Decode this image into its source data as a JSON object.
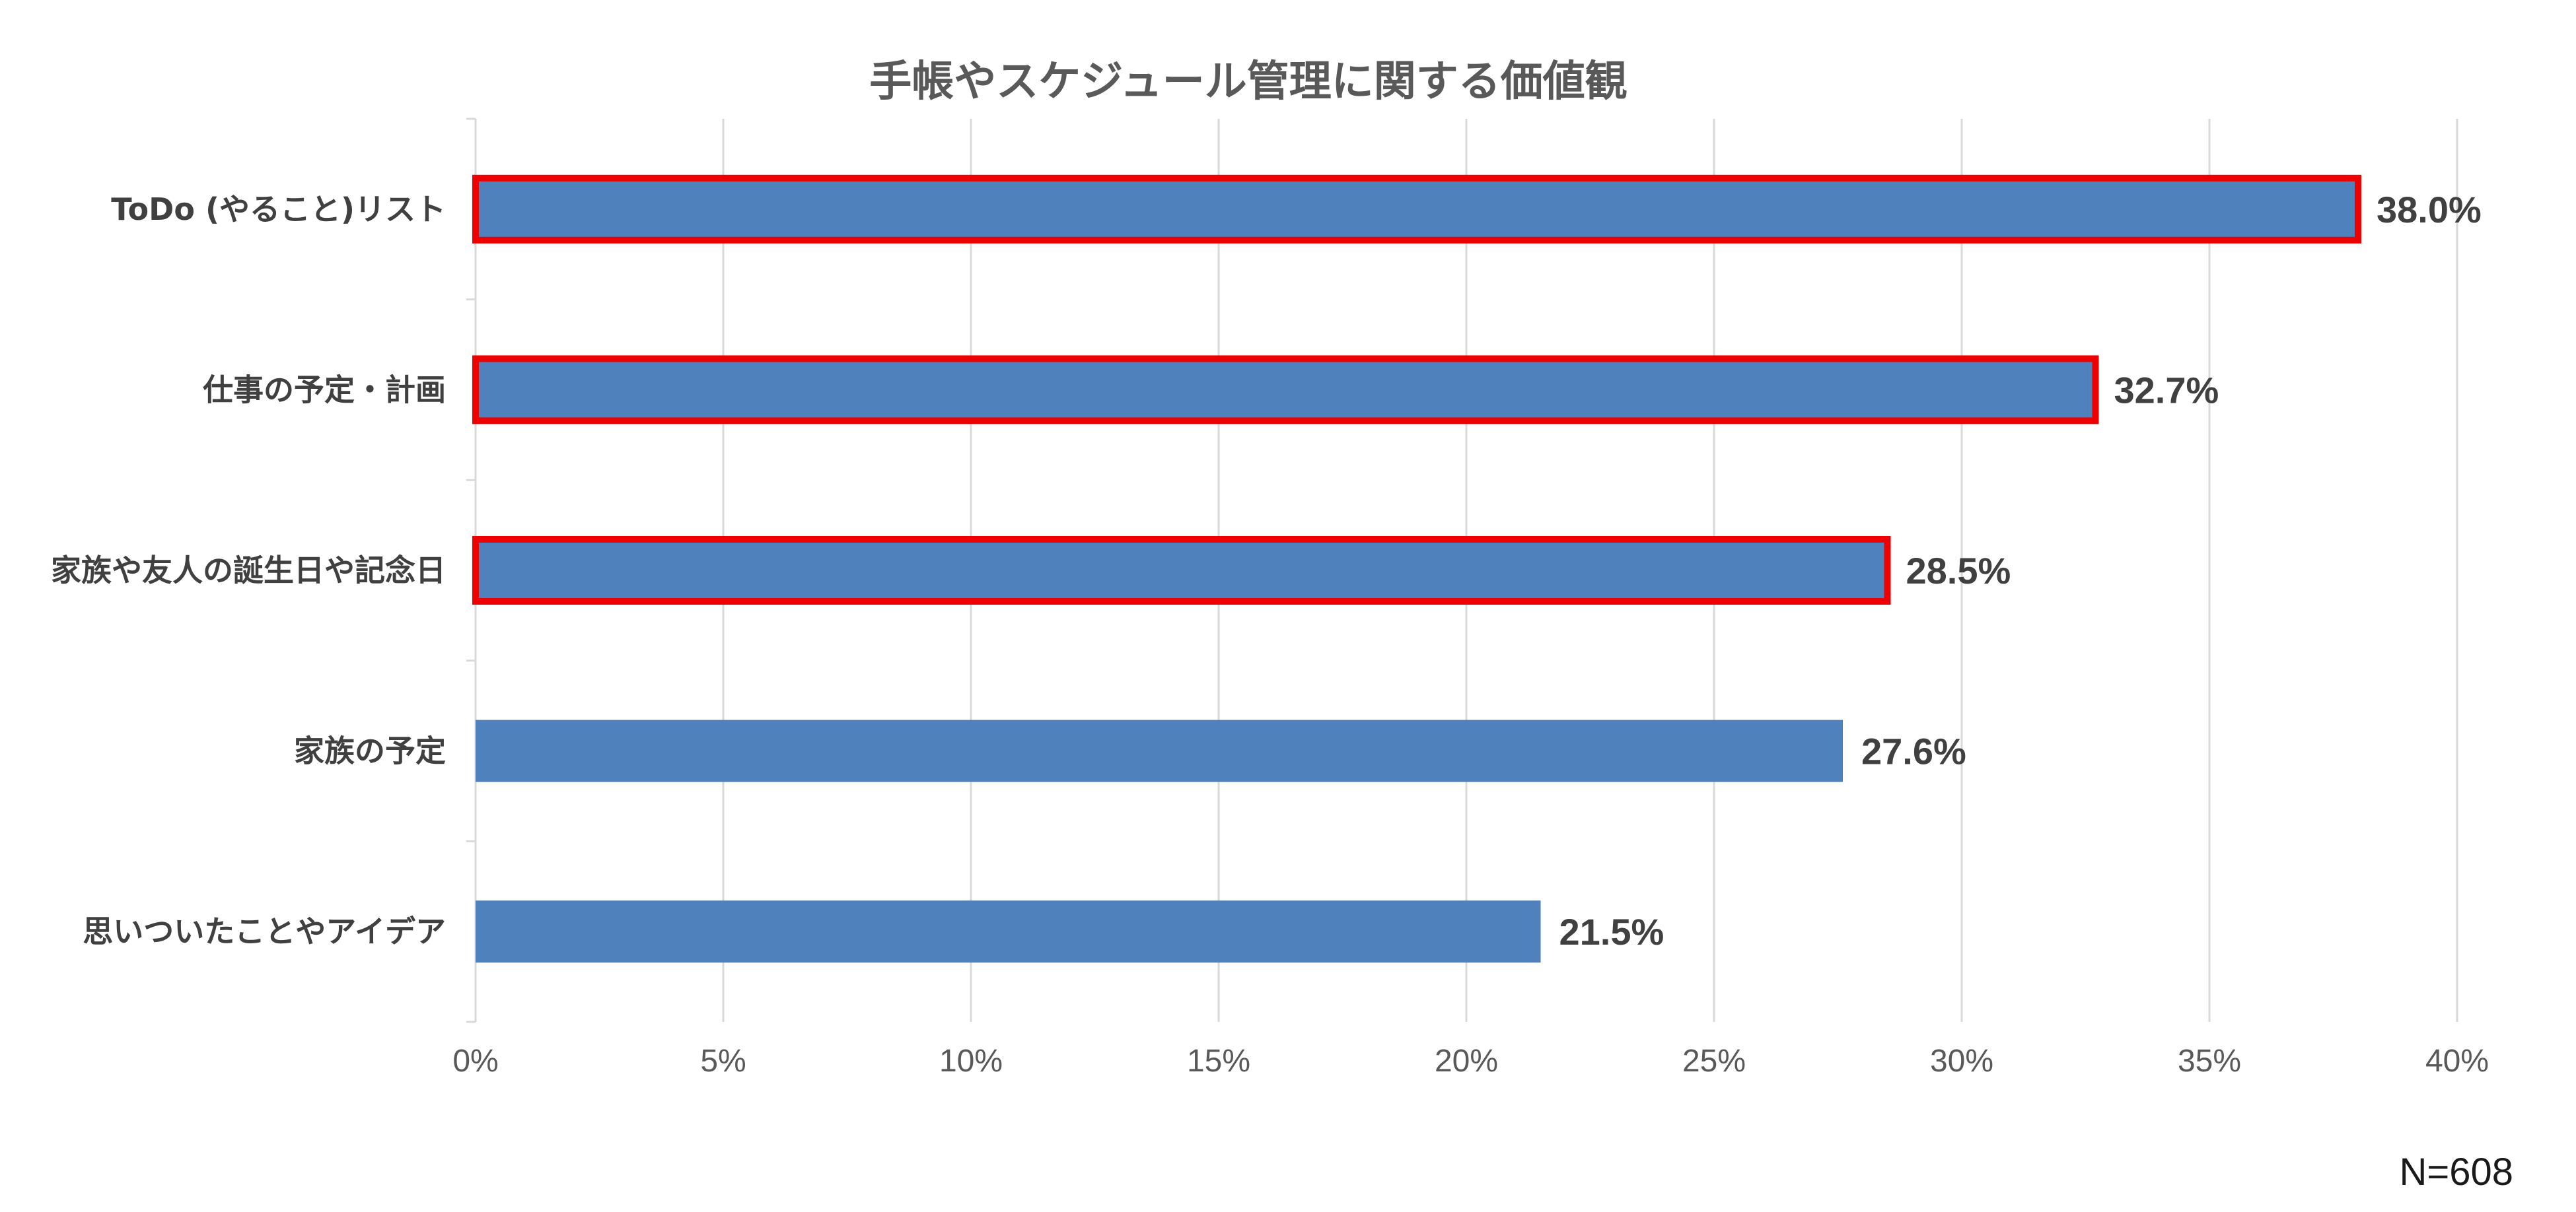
{
  "chart_data": {
    "type": "bar",
    "orientation": "horizontal",
    "title": "手帳やスケジュール管理に関する価値観",
    "categories": [
      "ToDo (やること)リスト",
      "仕事の予定・計画",
      "家族や友人の誕生日や記念日",
      "家族の予定",
      "思いついたことやアイデア"
    ],
    "values": [
      38.0,
      32.7,
      28.5,
      27.6,
      21.5
    ],
    "data_labels": [
      "38.0%",
      "32.7%",
      "28.5%",
      "27.6%",
      "21.5%"
    ],
    "highlighted": [
      true,
      true,
      true,
      false,
      false
    ],
    "xlim": [
      0,
      40
    ],
    "x_ticks": [
      "0%",
      "5%",
      "10%",
      "15%",
      "20%",
      "25%",
      "30%",
      "35%",
      "40%"
    ],
    "grid": true,
    "bar_color": "#4f81bd",
    "highlight_color": "#ee0000"
  },
  "footnote": "N=608"
}
